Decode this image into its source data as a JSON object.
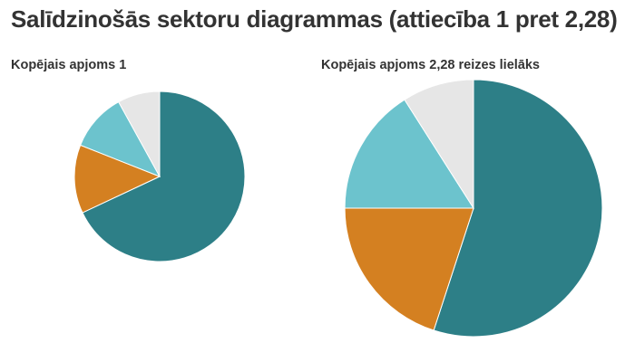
{
  "page": {
    "title": "Salīdzinošās sektoru diagrammas (attiecība 1 pret 2,28)"
  },
  "chart_data": [
    {
      "type": "pie",
      "title": "Kopējais apjoms 1",
      "total_ratio": 1,
      "slices": [
        {
          "value": 68,
          "color": "#2d7f87"
        },
        {
          "value": 13,
          "color": "#d48021"
        },
        {
          "value": 11,
          "color": "#6cc3cd"
        },
        {
          "value": 8,
          "color": "#e6e6e6"
        }
      ]
    },
    {
      "type": "pie",
      "title": "Kopējais apjoms 2,28 reizes lielāks",
      "total_ratio": 2.28,
      "slices": [
        {
          "value": 55,
          "color": "#2d7f87"
        },
        {
          "value": 20,
          "color": "#d48021"
        },
        {
          "value": 16,
          "color": "#6cc3cd"
        },
        {
          "value": 9,
          "color": "#e6e6e6"
        }
      ]
    }
  ]
}
